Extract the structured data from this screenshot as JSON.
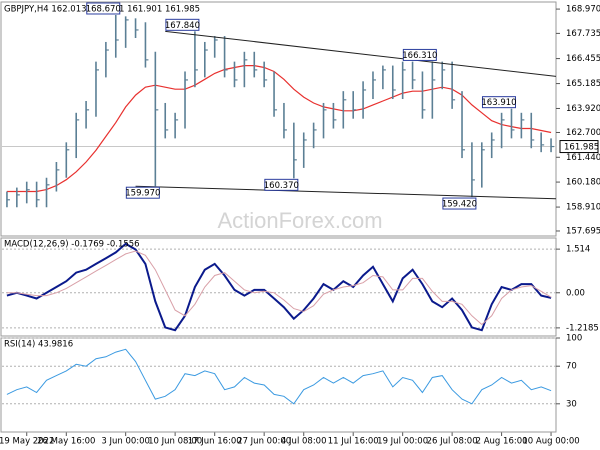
{
  "chart_data": [
    {
      "type": "ohlc",
      "title": "GBPJPY,H4 162.013 162.101 161.901 161.985",
      "watermark": "ActionForex.com",
      "categories": [
        null,
        null,
        "19 May 2022",
        null,
        null,
        null,
        "26 May 16:00",
        null,
        null,
        null,
        null,
        null,
        "3 Jun 00:00",
        null,
        null,
        null,
        null,
        "10 Jun 08:00",
        null,
        null,
        null,
        "17 Jun 16:00",
        null,
        null,
        null,
        null,
        "27 Jun 00:00",
        null,
        null,
        null,
        "4 Jul 08:00",
        null,
        null,
        null,
        null,
        "11 Jul 16:00",
        null,
        null,
        null,
        null,
        "19 Jul 00:00",
        null,
        null,
        null,
        null,
        "26 Jul 08:00",
        null,
        null,
        null,
        null,
        "2 Aug 16:00",
        null,
        null,
        null,
        null,
        "10 Aug 00:00"
      ],
      "color": "#5b7f95",
      "high": [
        159.7,
        159.9,
        160.2,
        160.2,
        160.4,
        161.2,
        162.2,
        163.7,
        164.3,
        166.3,
        167.3,
        168.67,
        168.6,
        168.5,
        168.3,
        166.8,
        164.2,
        163.7,
        165.8,
        167.84,
        167.3,
        167.6,
        167.6,
        166.3,
        166.8,
        166.8,
        166.3,
        165.8,
        164.2,
        163.2,
        162.7,
        163.2,
        164.2,
        164.2,
        164.8,
        164.8,
        165.3,
        165.8,
        166.1,
        166.1,
        166.3,
        166.3,
        165.8,
        166.31,
        166.3,
        166.3,
        164.8,
        162.2,
        162.2,
        162.7,
        163.7,
        163.91,
        163.7,
        163.7,
        162.7,
        162.4
      ],
      "low": [
        158.9,
        158.9,
        159.1,
        158.9,
        158.9,
        159.7,
        160.4,
        161.4,
        162.9,
        163.5,
        165.5,
        166.5,
        167.0,
        167.5,
        166.0,
        159.97,
        162.4,
        162.4,
        162.9,
        165.0,
        165.5,
        166.5,
        165.5,
        165.0,
        165.0,
        165.5,
        165.0,
        163.5,
        162.4,
        160.37,
        160.9,
        161.9,
        162.4,
        162.9,
        162.9,
        163.4,
        163.4,
        164.4,
        164.9,
        164.4,
        164.4,
        164.9,
        163.4,
        163.4,
        164.9,
        163.9,
        161.4,
        159.42,
        159.9,
        161.4,
        161.9,
        162.4,
        162.4,
        161.9,
        161.7,
        161.7
      ],
      "close": [
        159.28,
        159.53,
        159.79,
        159.28,
        160.04,
        160.8,
        161.82,
        163.34,
        163.85,
        165.88,
        166.89,
        167.4,
        168.42,
        167.91,
        166.39,
        163.85,
        162.83,
        163.34,
        165.37,
        165.88,
        166.89,
        167.4,
        165.88,
        165.37,
        166.39,
        165.88,
        165.37,
        163.85,
        162.83,
        161.31,
        162.32,
        162.83,
        163.85,
        163.34,
        164.36,
        163.85,
        164.86,
        165.37,
        165.88,
        164.86,
        165.88,
        165.37,
        163.85,
        165.37,
        165.88,
        164.36,
        161.82,
        160.29,
        161.82,
        162.32,
        163.34,
        162.83,
        163.34,
        162.32,
        162.07,
        161.985
      ],
      "ma": {
        "color": "#e8312f",
        "values": [
          159.7,
          159.7,
          159.7,
          159.7,
          159.8,
          160.0,
          160.3,
          160.7,
          161.2,
          161.8,
          162.5,
          163.2,
          164.0,
          164.6,
          165.0,
          165.1,
          165.0,
          164.9,
          164.9,
          165.1,
          165.4,
          165.7,
          165.9,
          166.0,
          166.1,
          166.1,
          166.0,
          165.8,
          165.4,
          164.9,
          164.5,
          164.2,
          164.0,
          163.9,
          163.8,
          163.8,
          163.9,
          164.1,
          164.3,
          164.5,
          164.7,
          164.8,
          164.8,
          164.9,
          165.0,
          164.9,
          164.6,
          164.1,
          163.7,
          163.3,
          163.1,
          163.0,
          162.9,
          162.9,
          162.8,
          162.7
        ]
      },
      "annotations": [
        {
          "value": 168.67,
          "label": "168.670"
        },
        {
          "value": 167.84,
          "label": "167.840"
        },
        {
          "value": 166.31,
          "label": "166.310"
        },
        {
          "value": 163.91,
          "label": "163.910"
        },
        {
          "value": 159.97,
          "label": "159.970"
        },
        {
          "value": 160.37,
          "label": "160.370"
        },
        {
          "value": 159.42,
          "label": "159.420"
        }
      ],
      "trendlines": [
        {
          "x": [
            16,
            56
          ],
          "y": [
            167.84,
            165.55
          ]
        },
        {
          "x": [
            13,
            56
          ],
          "y": [
            159.97,
            159.33
          ]
        }
      ],
      "last_price": 161.985,
      "ylim": [
        157.44,
        169.33
      ],
      "yticks": [
        {
          "value": 168.97,
          "label": "168.970"
        },
        167.735,
        166.455,
        165.185,
        {
          "value": 163.92,
          "label": "163.920"
        },
        {
          "value": 162.7,
          "label": "162.700"
        },
        {
          "value": 161.44,
          "label": "161.440"
        },
        {
          "value": 160.18,
          "label": "160.180"
        },
        {
          "value": 158.91,
          "label": "158.910"
        },
        157.695
      ]
    },
    {
      "type": "line",
      "title": "MACD(12,26,9) -0.1769 -0.1556",
      "grid": true,
      "series": [
        {
          "color": "#0b1a8c",
          "width": 2,
          "values": [
            -0.1,
            0.0,
            -0.1,
            -0.2,
            0.0,
            0.2,
            0.4,
            0.7,
            0.8,
            1.0,
            1.2,
            1.4,
            1.7,
            1.5,
            1.0,
            -0.3,
            -1.2,
            -1.3,
            -0.8,
            0.2,
            0.8,
            1.0,
            0.6,
            0.1,
            -0.1,
            0.1,
            0.1,
            -0.2,
            -0.5,
            -0.9,
            -0.6,
            -0.2,
            0.3,
            0.1,
            0.4,
            0.2,
            0.6,
            0.9,
            0.3,
            -0.3,
            0.5,
            0.8,
            0.3,
            -0.3,
            -0.5,
            -0.2,
            -0.6,
            -1.2,
            -1.3,
            -0.4,
            0.2,
            0.1,
            0.3,
            0.3,
            -0.1,
            -0.1769
          ]
        },
        {
          "color": "#d9a0a8",
          "width": 1,
          "values": [
            0.0,
            0.0,
            -0.05,
            -0.1,
            -0.1,
            0.0,
            0.15,
            0.35,
            0.55,
            0.75,
            0.95,
            1.15,
            1.35,
            1.45,
            1.3,
            0.8,
            0.1,
            -0.6,
            -0.8,
            -0.4,
            0.2,
            0.6,
            0.7,
            0.4,
            0.1,
            0.0,
            0.05,
            0.0,
            -0.25,
            -0.55,
            -0.65,
            -0.45,
            -0.05,
            0.1,
            0.2,
            0.25,
            0.35,
            0.6,
            0.55,
            0.1,
            0.1,
            0.5,
            0.5,
            0.05,
            -0.3,
            -0.3,
            -0.4,
            -0.8,
            -1.1,
            -0.8,
            -0.2,
            0.1,
            0.2,
            0.25,
            0.05,
            -0.1556
          ]
        }
      ],
      "ylim": [
        -1.5,
        1.9
      ],
      "yticks": [
        1.514,
        {
          "value": 0,
          "label": "0.00"
        },
        -1.2185
      ]
    },
    {
      "type": "line",
      "title": "RSI(14) 43.9816",
      "grid": true,
      "series": [
        {
          "color": "#3b9ae1",
          "width": 1,
          "values": [
            40,
            45,
            48,
            42,
            55,
            60,
            65,
            72,
            70,
            78,
            80,
            85,
            88,
            75,
            55,
            35,
            38,
            45,
            62,
            60,
            65,
            62,
            45,
            48,
            58,
            52,
            50,
            40,
            38,
            30,
            45,
            50,
            58,
            52,
            58,
            52,
            60,
            62,
            65,
            48,
            58,
            55,
            42,
            58,
            60,
            45,
            35,
            30,
            45,
            50,
            58,
            52,
            55,
            45,
            48,
            43.9816
          ]
        }
      ],
      "ylim": [
        0,
        100
      ],
      "yticks": [
        100,
        70,
        30
      ]
    }
  ]
}
